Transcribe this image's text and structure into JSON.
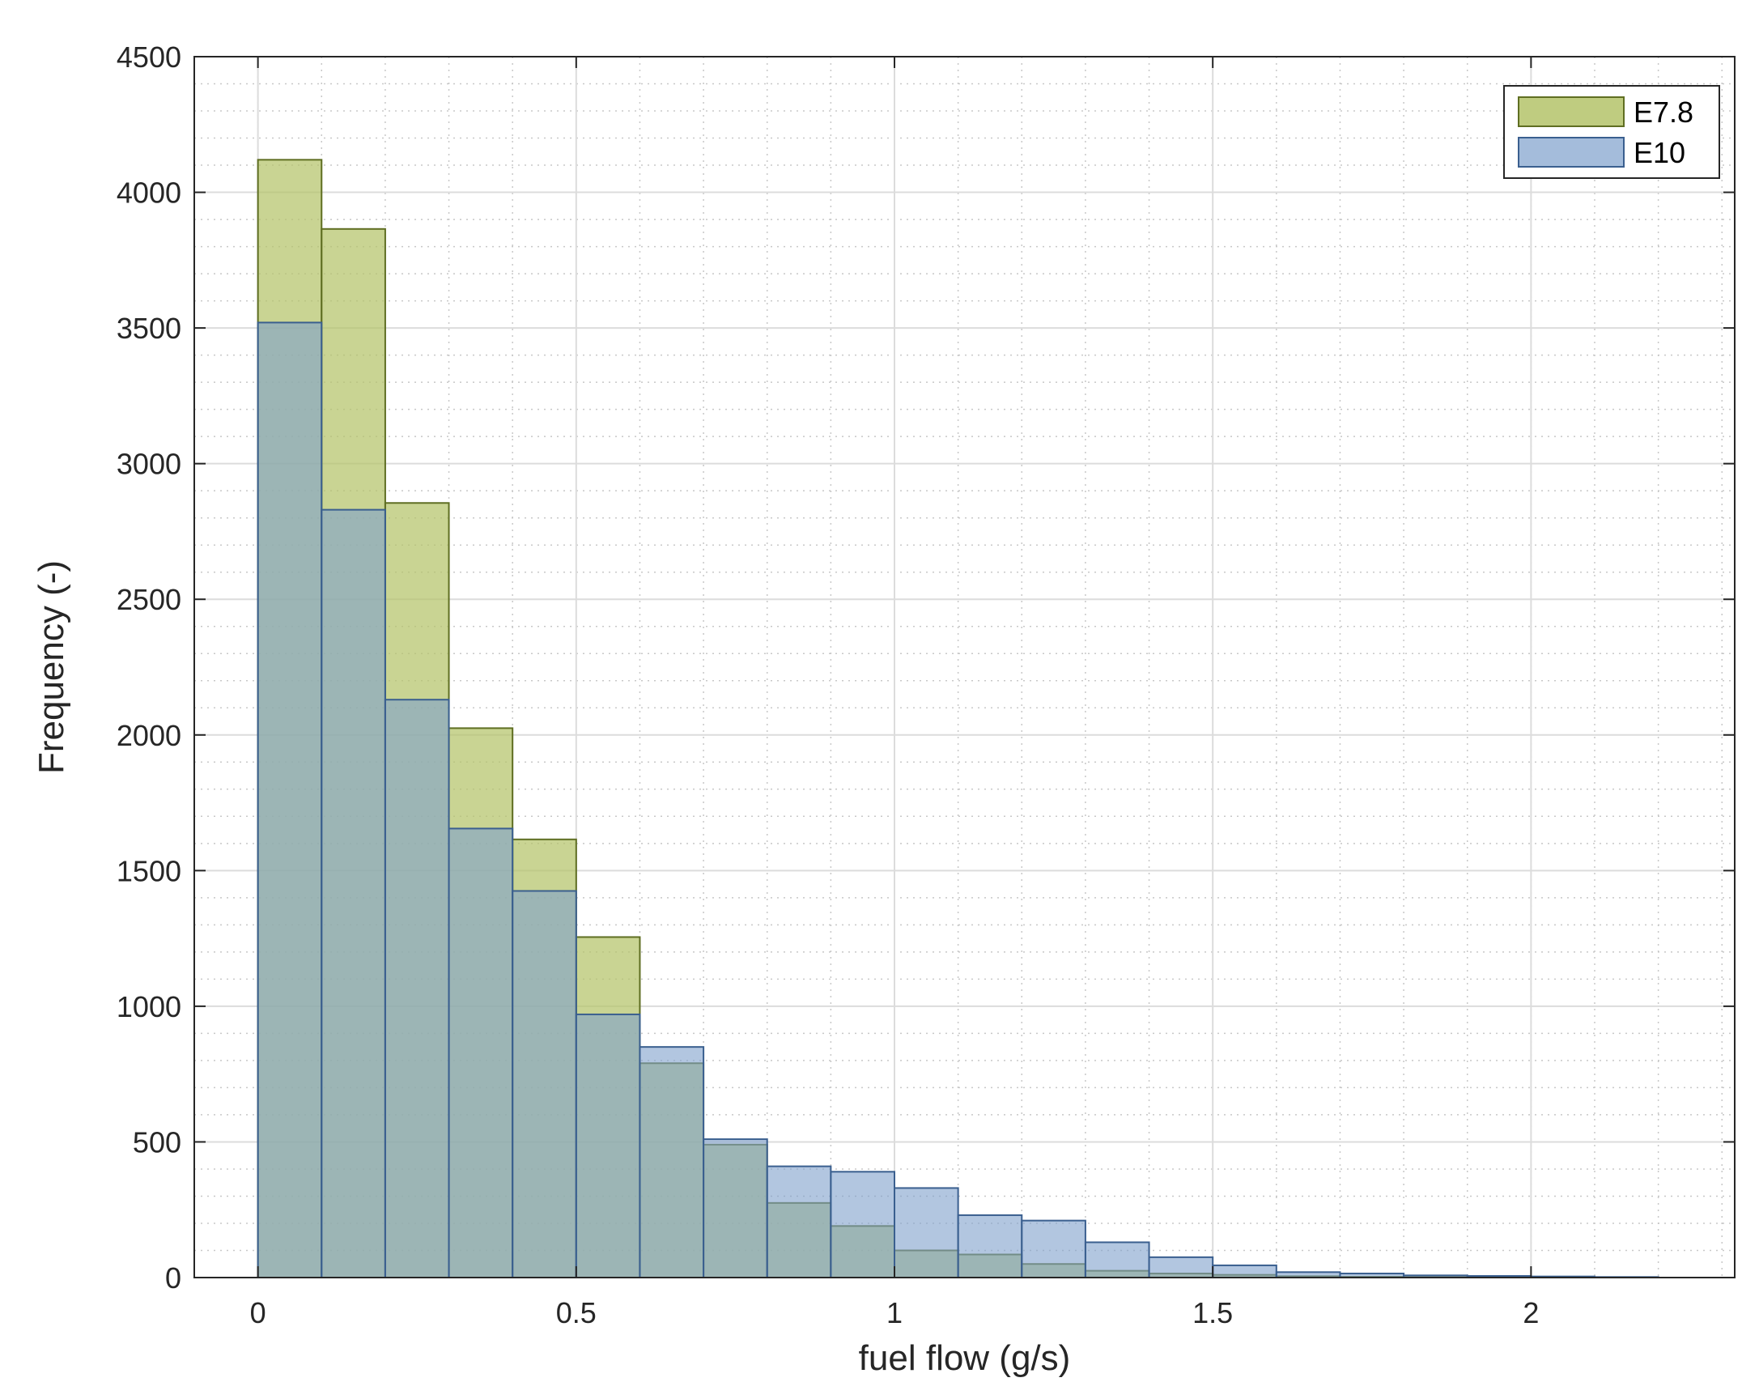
{
  "chart_data": {
    "type": "bar",
    "subtype": "overlapping-histogram",
    "xlabel": "fuel flow (g/s)",
    "ylabel": "Frequency (-)",
    "xlim": [
      -0.1,
      2.32
    ],
    "ylim": [
      0,
      4500
    ],
    "xticks": [
      "0",
      "0.5",
      "1",
      "1.5",
      "2"
    ],
    "xtick_values": [
      0,
      0.5,
      1,
      1.5,
      2
    ],
    "yticks": [
      "0",
      "500",
      "1000",
      "1500",
      "2000",
      "2500",
      "3000",
      "3500",
      "4000",
      "4500"
    ],
    "ytick_values": [
      0,
      500,
      1000,
      1500,
      2000,
      2500,
      3000,
      3500,
      4000,
      4500
    ],
    "grid": true,
    "minor_grid": true,
    "legend_position": "top-right",
    "bin_edges": [
      0,
      0.1,
      0.2,
      0.3,
      0.4,
      0.5,
      0.6,
      0.7,
      0.8,
      0.9,
      1.0,
      1.1,
      1.2,
      1.3,
      1.4,
      1.5,
      1.6,
      1.7,
      1.8,
      1.9,
      2.0,
      2.1,
      2.2
    ],
    "series": [
      {
        "name": "E7.8",
        "color": "#9bab3d",
        "values": [
          4120,
          3865,
          2855,
          2025,
          1615,
          1255,
          790,
          490,
          275,
          190,
          100,
          85,
          50,
          25,
          15,
          10,
          5,
          3,
          2,
          1,
          1,
          1
        ]
      },
      {
        "name": "E10",
        "color": "#6a91c2",
        "values": [
          3520,
          2830,
          2130,
          1655,
          1425,
          970,
          850,
          510,
          410,
          390,
          330,
          230,
          210,
          130,
          75,
          45,
          20,
          15,
          8,
          6,
          4,
          2
        ]
      }
    ]
  }
}
